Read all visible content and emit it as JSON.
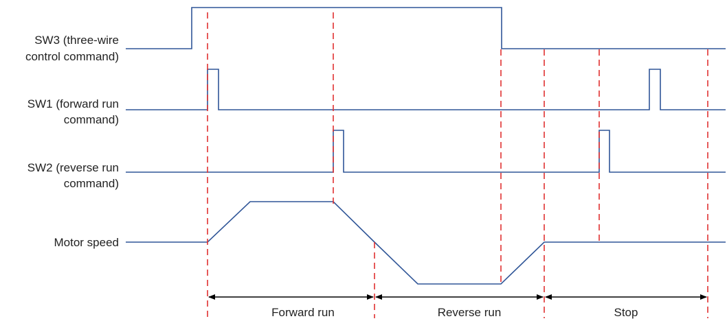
{
  "signals": [
    {
      "id": "sw3",
      "label_lines": [
        "SW3 (three-wire",
        "control command)"
      ]
    },
    {
      "id": "sw1",
      "label_lines": [
        "SW1 (forward run",
        "command)"
      ]
    },
    {
      "id": "sw2",
      "label_lines": [
        "SW2 (reverse run",
        "command)"
      ]
    },
    {
      "id": "motor",
      "label_lines": [
        "Motor speed"
      ]
    }
  ],
  "phases": [
    {
      "label": "Forward run"
    },
    {
      "label": "Reverse run"
    },
    {
      "label": "Stop"
    }
  ],
  "colors": {
    "signal": "#2f5597",
    "marker": "#e03030",
    "arrow": "#000000",
    "text": "#222222"
  }
}
